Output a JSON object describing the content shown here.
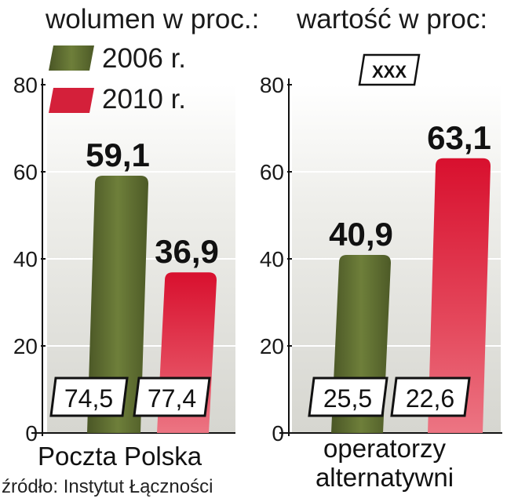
{
  "chart_data": [
    {
      "type": "bar",
      "title": "wolumen w proc.:",
      "categories": [
        "Poczta Polska"
      ],
      "series": [
        {
          "name": "2006 r.",
          "values": [
            59.1
          ],
          "lower_values": [
            74.5
          ]
        },
        {
          "name": "2010 r.",
          "values": [
            36.9
          ],
          "lower_values": [
            77.4
          ]
        }
      ],
      "ylim": [
        0,
        80
      ],
      "yticks": [
        "80",
        "60",
        "40",
        "20",
        "0"
      ]
    },
    {
      "type": "bar",
      "title": "wartość w proc:",
      "categories": [
        "operatorzy alternatywni"
      ],
      "category_lines": [
        "operatorzy",
        "alternatywni"
      ],
      "badge": "XXX",
      "series": [
        {
          "name": "2006 r.",
          "values": [
            40.9
          ],
          "lower_values": [
            25.5
          ]
        },
        {
          "name": "2010 r.",
          "values": [
            63.1
          ],
          "lower_values": [
            22.6
          ]
        }
      ],
      "ylim": [
        0,
        80
      ],
      "yticks": [
        "80",
        "60",
        "40",
        "20",
        "0"
      ]
    }
  ],
  "labels": {
    "left_v1": "59,1",
    "left_v2": "36,9",
    "left_p1": "74,5",
    "left_p2": "77,4",
    "right_v1": "40,9",
    "right_v2": "63,1",
    "right_p1": "25,5",
    "right_p2": "22,6"
  },
  "legend": [
    {
      "label": "2006 r.",
      "color": "#5b6a2e"
    },
    {
      "label": "2010 r.",
      "color": "#d4203a"
    }
  ],
  "source": "źródło: Instytut Łączności",
  "colors": {
    "green": "#5b6a2e",
    "red": "#d4203a",
    "panel": "#e3e3dd"
  }
}
